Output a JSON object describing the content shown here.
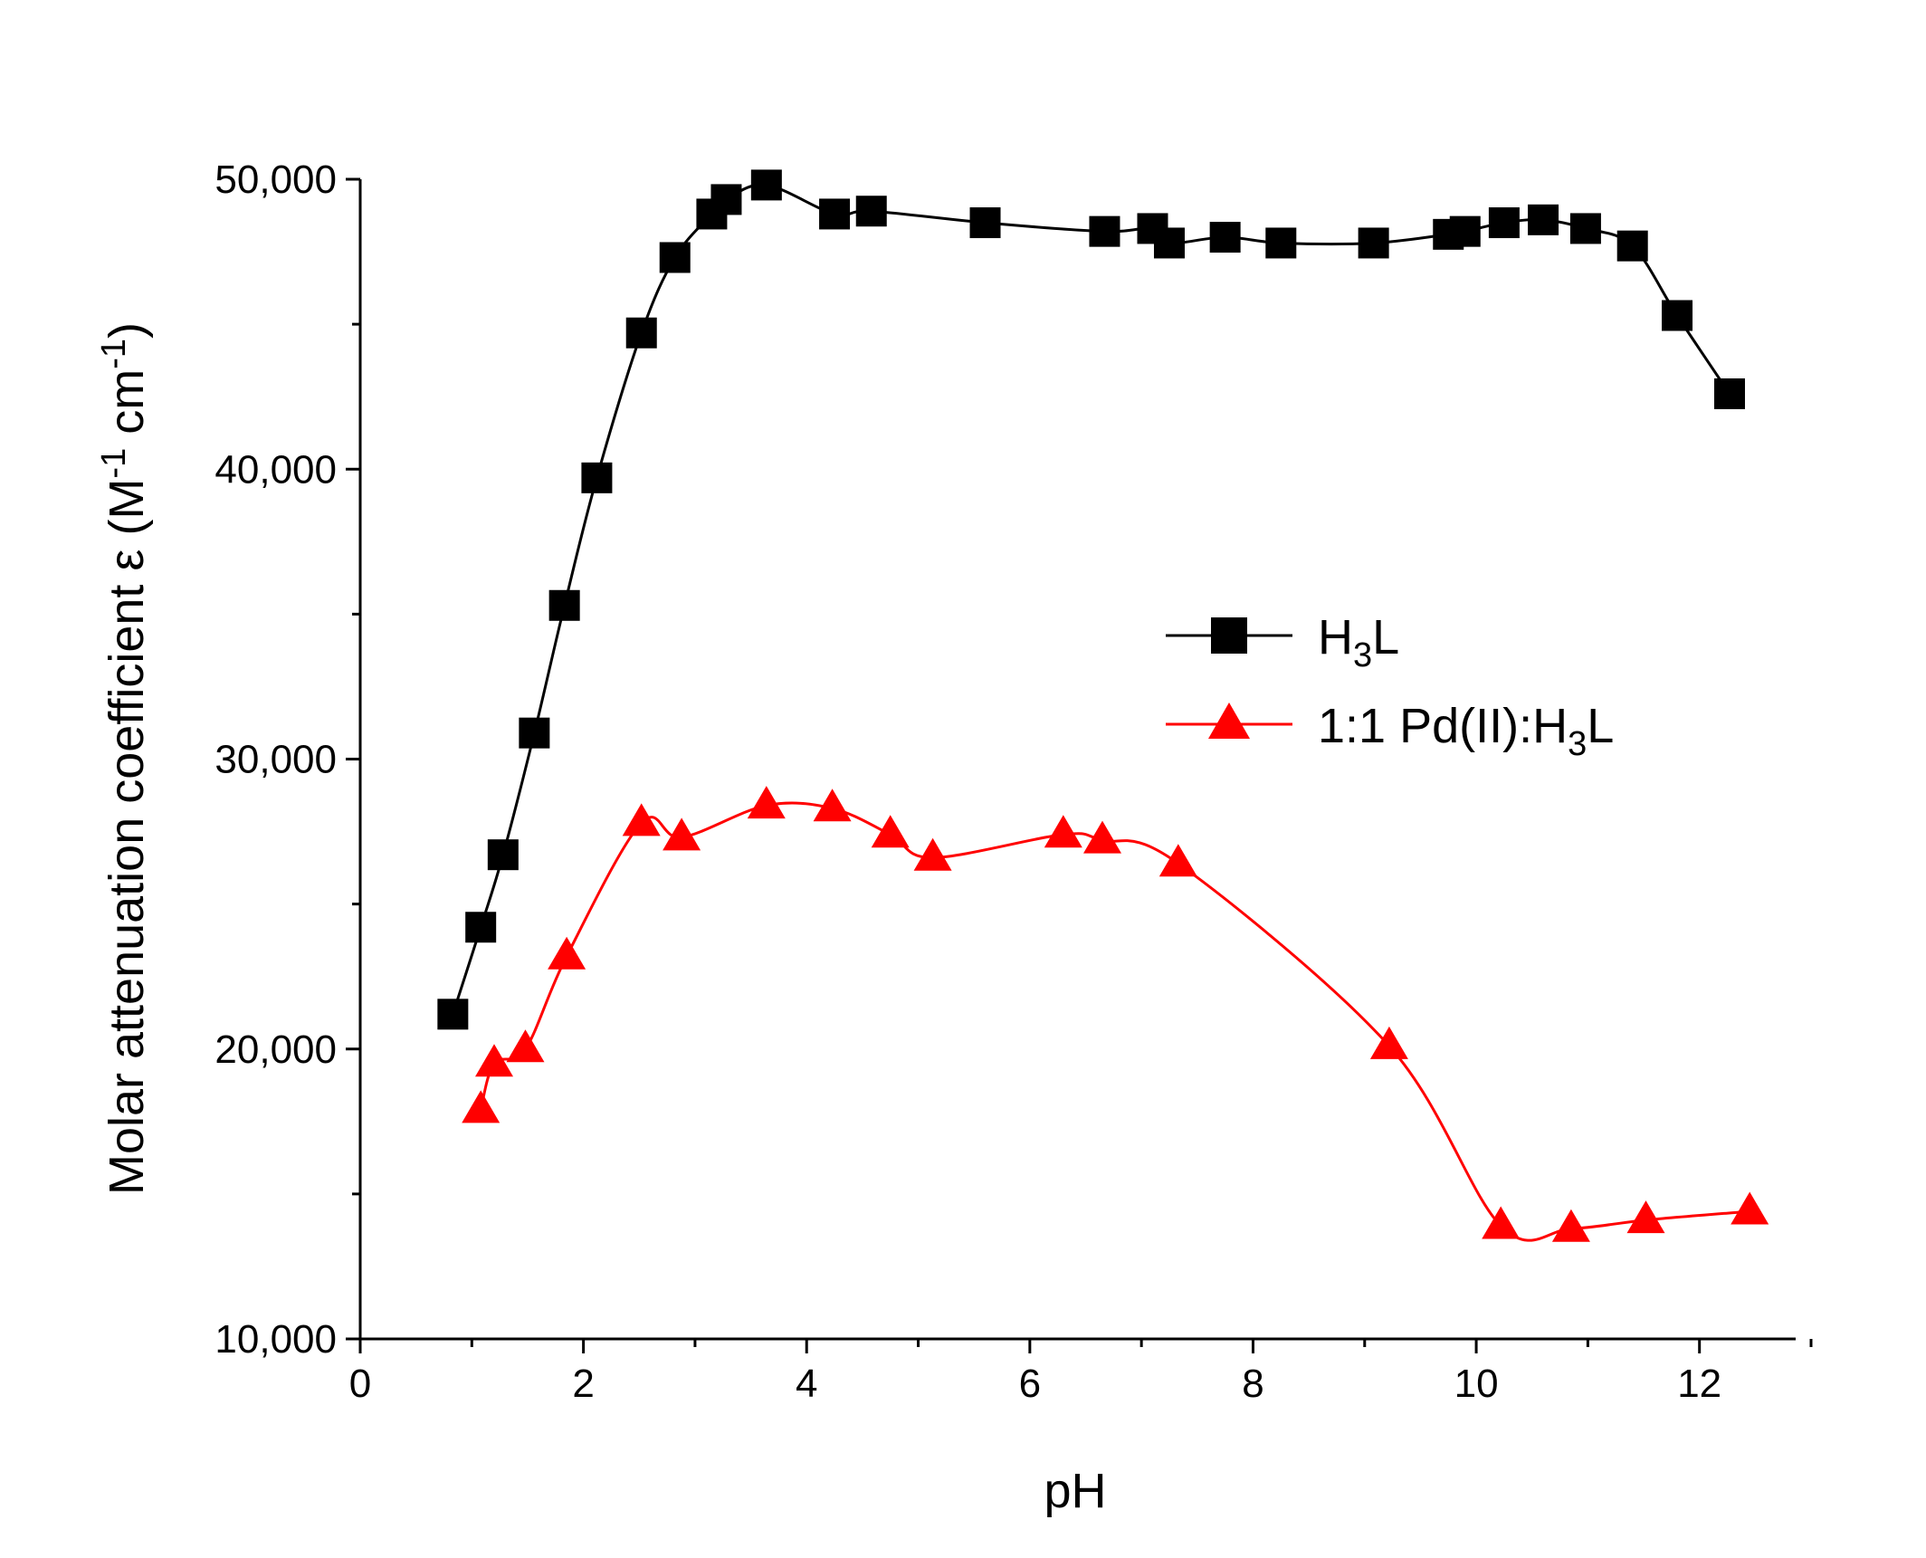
{
  "chart_data": {
    "type": "line",
    "title": "",
    "xlabel": "pH",
    "ylabel": {
      "text": "Molar attenuation coefficient ε (M",
      "sup1": "-1",
      "mid": " cm",
      "sup2": "-1",
      "end": ")"
    },
    "xlim": [
      0,
      13
    ],
    "ylim": [
      10000,
      50000
    ],
    "x_ticks": [
      0,
      2,
      4,
      6,
      8,
      10,
      12
    ],
    "x_tick_labels": [
      "0",
      "2",
      "4",
      "6",
      "8",
      "10",
      "12"
    ],
    "x_minor_ticks": [
      1,
      3,
      5,
      7,
      9,
      11,
      13
    ],
    "y_ticks": [
      10000,
      20000,
      30000,
      40000,
      50000
    ],
    "y_tick_labels": [
      "10,000",
      "20,000",
      "30,000",
      "40,000",
      "50,000"
    ],
    "y_minor_ticks": [
      15000,
      25000,
      35000,
      45000
    ],
    "legend_position": "center-right",
    "series": [
      {
        "name": "H3L",
        "label_main": "H",
        "label_sub": "3",
        "label_tail": "L",
        "color": "#000000",
        "marker": "square",
        "x": [
          0.83,
          1.08,
          1.28,
          1.56,
          1.83,
          2.12,
          2.52,
          2.82,
          3.15,
          3.28,
          3.64,
          4.25,
          4.58,
          5.6,
          6.67,
          7.1,
          7.25,
          7.75,
          8.25,
          9.08,
          9.75,
          9.9,
          10.25,
          10.6,
          10.98,
          11.4,
          11.8,
          12.27
        ],
        "values": [
          21200,
          24200,
          26700,
          30900,
          35300,
          39700,
          44700,
          47300,
          48800,
          49300,
          49800,
          48800,
          48900,
          48500,
          48200,
          48300,
          47800,
          48000,
          47800,
          47800,
          48100,
          48200,
          48500,
          48600,
          48300,
          47700,
          45300,
          42600
        ]
      },
      {
        "name": "1:1 Pd(II):H3L",
        "label_main": "1:1 Pd(II):H",
        "label_sub": "3",
        "label_tail": "L",
        "color": "#ff0000",
        "marker": "triangle",
        "x": [
          1.08,
          1.2,
          1.48,
          1.85,
          2.52,
          2.88,
          3.64,
          4.23,
          4.75,
          5.13,
          6.3,
          6.65,
          7.33,
          9.22,
          10.22,
          10.85,
          11.52,
          12.45
        ],
        "values": [
          17900,
          19500,
          20000,
          23200,
          27800,
          27300,
          28400,
          28300,
          27400,
          26600,
          27400,
          27200,
          26400,
          20100,
          13900,
          13800,
          14100,
          14400
        ]
      }
    ]
  }
}
